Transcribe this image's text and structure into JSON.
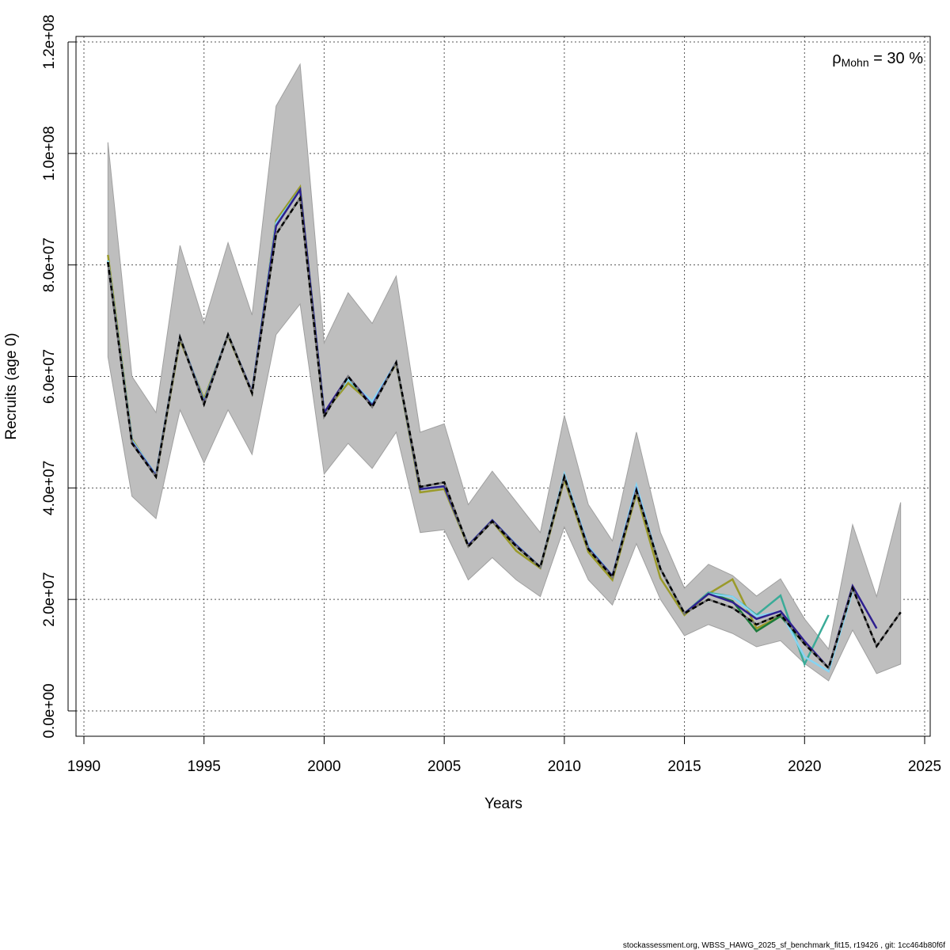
{
  "chart_data": {
    "type": "line",
    "xlabel": "Years",
    "ylabel": "Recruits (age 0)",
    "xlim": [
      1990,
      2025
    ],
    "ylim": [
      0,
      120000000
    ],
    "xticks": [
      1990,
      1995,
      2000,
      2005,
      2010,
      2015,
      2020,
      2025
    ],
    "xtick_labels": [
      "1990",
      "1995",
      "2000",
      "2005",
      "2010",
      "2015",
      "2020",
      "2025"
    ],
    "yticks": [
      0,
      20000000,
      40000000,
      60000000,
      80000000,
      100000000,
      120000000
    ],
    "ytick_labels": [
      "0.0e+00",
      "2.0e+07",
      "4.0e+07",
      "6.0e+07",
      "8.0e+07",
      "1.0e+08",
      "1.2e+08"
    ],
    "grid": true,
    "annotation": {
      "symbol": "ρ",
      "subscript": "Mohn",
      "text": " = 30 %"
    },
    "unit_scale": 1000000,
    "confidence_band": {
      "color": "#bebebe",
      "years_start": 1991,
      "upper": [
        102,
        60,
        53.5,
        83.5,
        69.5,
        84,
        71,
        108.5,
        116,
        66,
        75,
        69.5,
        78,
        50,
        51.5,
        37,
        43,
        37.5,
        32,
        53,
        37,
        30.5,
        50,
        32,
        22,
        26.3,
        24.3,
        20.6,
        23.7,
        16.5,
        11.1,
        33.4,
        20.5,
        37.4
      ],
      "lower": [
        63.5,
        38.5,
        34.5,
        54,
        44.5,
        54,
        46,
        67.5,
        73,
        42.5,
        48,
        43.5,
        50,
        32,
        32.5,
        23.5,
        27.5,
        23.5,
        20.5,
        33,
        23.5,
        19,
        30,
        20,
        13.5,
        15.5,
        13.9,
        11.5,
        12.6,
        8.5,
        5.4,
        14.5,
        6.7,
        8.4
      ]
    },
    "series": [
      {
        "color": "#9a9a2a",
        "dashed": false,
        "start": 1991,
        "values": [
          81.8,
          48.8,
          42,
          66.5,
          56,
          67.3,
          57,
          88,
          94,
          53.5,
          58.8,
          55,
          62.3,
          39.2,
          39.8,
          29.5,
          34,
          28.7,
          25.6,
          41.5,
          28.5,
          23.5,
          39,
          23.8,
          17.2,
          21,
          23.6,
          14.8,
          17
        ]
      },
      {
        "color": "#1b7a3a",
        "dashed": false,
        "start": 1991,
        "values": [
          80.5,
          48.5,
          42.3,
          67,
          55.5,
          67.5,
          57.2,
          87.5,
          93.5,
          53.5,
          59.8,
          54.8,
          62.5,
          39.8,
          40.3,
          29.7,
          34.2,
          29.5,
          25.8,
          42,
          29.2,
          24.2,
          39.7,
          25.5,
          17.5,
          21.2,
          19.7,
          14.3,
          17,
          12
        ]
      },
      {
        "color": "#3aab98",
        "dashed": false,
        "start": 1991,
        "values": [
          80.8,
          48.5,
          42.3,
          67,
          55.5,
          67.5,
          57.2,
          87.5,
          93.5,
          53.5,
          59.5,
          55,
          62.5,
          39.8,
          40.3,
          29.7,
          34.2,
          29.8,
          25.8,
          42.2,
          29.5,
          24.2,
          40,
          25.5,
          17.5,
          21.2,
          20.5,
          17.2,
          20.7,
          8.4,
          17.2
        ]
      },
      {
        "color": "#86d4f2",
        "dashed": false,
        "start": 1991,
        "values": [
          80.8,
          48.5,
          42.3,
          67,
          55.5,
          67.5,
          57.2,
          87.5,
          93.5,
          53.5,
          59.5,
          55.5,
          62.5,
          39.8,
          40.3,
          29.7,
          34.2,
          29.8,
          25.8,
          42.5,
          29.5,
          24.2,
          40.5,
          25.5,
          17.5,
          21,
          20.5,
          17,
          17.8,
          9.7,
          7.1,
          21.5
        ]
      },
      {
        "color": "#2e1f8f",
        "dashed": false,
        "start": 1991,
        "values": [
          80.5,
          48.2,
          42.2,
          67,
          55.3,
          67.5,
          57.2,
          87,
          93.5,
          53.5,
          60,
          54.8,
          62.5,
          39.8,
          40.3,
          29.7,
          34.2,
          29.7,
          25.8,
          42,
          29.2,
          24.2,
          39.7,
          25.5,
          17.5,
          21,
          19.5,
          16.5,
          17.9,
          12.5,
          7.7,
          22.4,
          14.8
        ]
      },
      {
        "color": "#000000",
        "dashed": true,
        "start": 1991,
        "values": [
          80.5,
          48,
          42,
          67,
          55,
          67.5,
          57,
          85.5,
          92,
          52.8,
          60,
          54.5,
          62.5,
          40.2,
          41,
          29.5,
          34,
          29.5,
          25.8,
          42,
          29,
          24,
          39.5,
          25.5,
          17.5,
          20,
          18.5,
          15.5,
          17.3,
          12,
          7.7,
          22,
          11.6,
          17.7
        ]
      }
    ]
  },
  "footer": "stockassessment.org, WBSS_HAWG_2025_sf_benchmark_fit15, r19426 , git: 1cc464b80f6f"
}
